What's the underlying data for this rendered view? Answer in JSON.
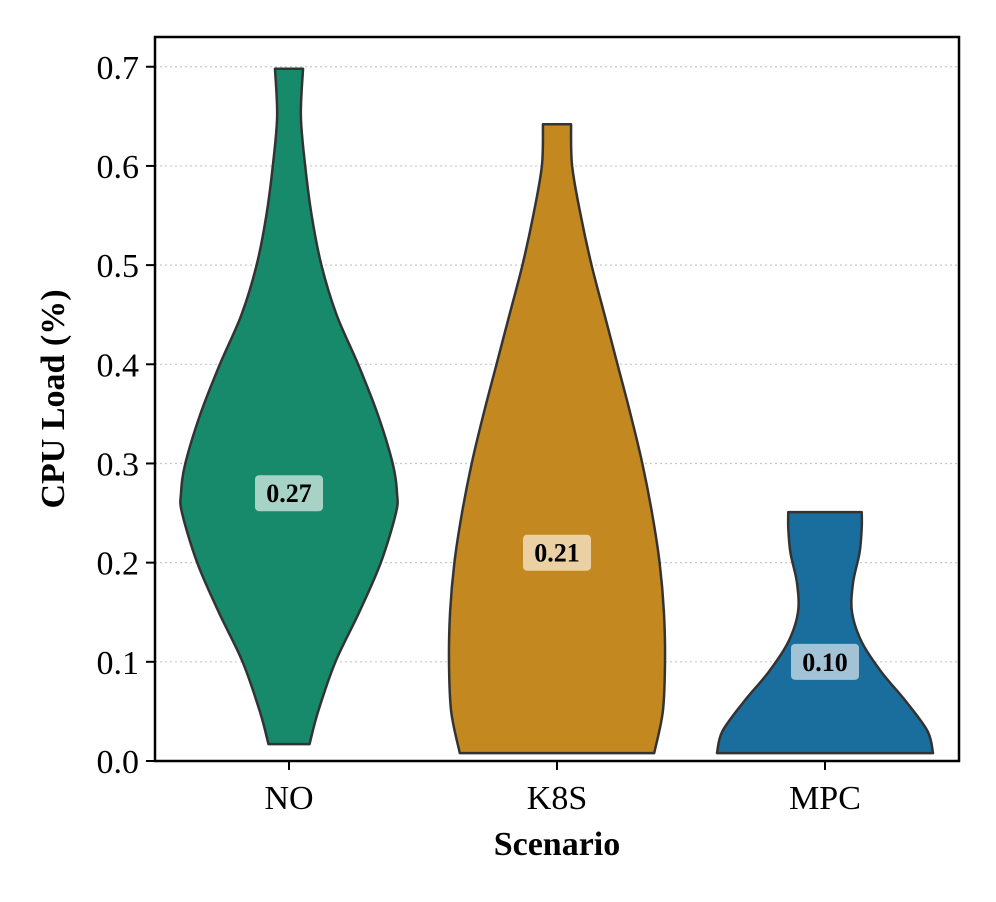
{
  "chart_data": {
    "type": "violin",
    "title": "",
    "xlabel": "Scenario",
    "ylabel": "CPU Load (%)",
    "categories": [
      "NO",
      "K8S",
      "MPC"
    ],
    "ylim": [
      0.0,
      0.73
    ],
    "yticks": [
      0.0,
      0.1,
      0.2,
      0.3,
      0.4,
      0.5,
      0.6,
      0.7
    ],
    "ytick_labels": [
      "0.0",
      "0.1",
      "0.2",
      "0.3",
      "0.4",
      "0.5",
      "0.6",
      "0.7"
    ],
    "grid": "horizontal-dotted",
    "series": [
      {
        "name": "NO",
        "color": "#168a6a",
        "label_bg": "#a6d3c5",
        "min": 0.017,
        "max": 0.698,
        "median": 0.27,
        "median_label": "0.27",
        "density": [
          [
            0.017,
            0.19
          ],
          [
            0.05,
            0.27
          ],
          [
            0.1,
            0.43
          ],
          [
            0.15,
            0.65
          ],
          [
            0.2,
            0.85
          ],
          [
            0.25,
            0.99
          ],
          [
            0.27,
            1.0
          ],
          [
            0.3,
            0.96
          ],
          [
            0.35,
            0.82
          ],
          [
            0.4,
            0.64
          ],
          [
            0.45,
            0.44
          ],
          [
            0.5,
            0.3
          ],
          [
            0.55,
            0.21
          ],
          [
            0.6,
            0.15
          ],
          [
            0.65,
            0.11
          ],
          [
            0.698,
            0.13
          ]
        ]
      },
      {
        "name": "K8S",
        "color": "#c48820",
        "label_bg": "#ebd0a3",
        "min": 0.008,
        "max": 0.642,
        "median": 0.21,
        "median_label": "0.21",
        "density": [
          [
            0.008,
            0.9
          ],
          [
            0.05,
            0.98
          ],
          [
            0.1,
            1.0
          ],
          [
            0.15,
            0.99
          ],
          [
            0.2,
            0.95
          ],
          [
            0.25,
            0.88
          ],
          [
            0.3,
            0.79
          ],
          [
            0.35,
            0.68
          ],
          [
            0.4,
            0.56
          ],
          [
            0.45,
            0.44
          ],
          [
            0.5,
            0.32
          ],
          [
            0.55,
            0.22
          ],
          [
            0.6,
            0.14
          ],
          [
            0.642,
            0.13
          ]
        ]
      },
      {
        "name": "MPC",
        "color": "#1a6e9e",
        "label_bg": "#a2c3d6",
        "min": 0.008,
        "max": 0.251,
        "median": 0.1,
        "median_label": "0.10",
        "density": [
          [
            0.008,
            1.0
          ],
          [
            0.03,
            0.95
          ],
          [
            0.06,
            0.75
          ],
          [
            0.09,
            0.52
          ],
          [
            0.12,
            0.34
          ],
          [
            0.15,
            0.25
          ],
          [
            0.18,
            0.26
          ],
          [
            0.21,
            0.32
          ],
          [
            0.235,
            0.34
          ],
          [
            0.251,
            0.34
          ]
        ]
      }
    ]
  }
}
